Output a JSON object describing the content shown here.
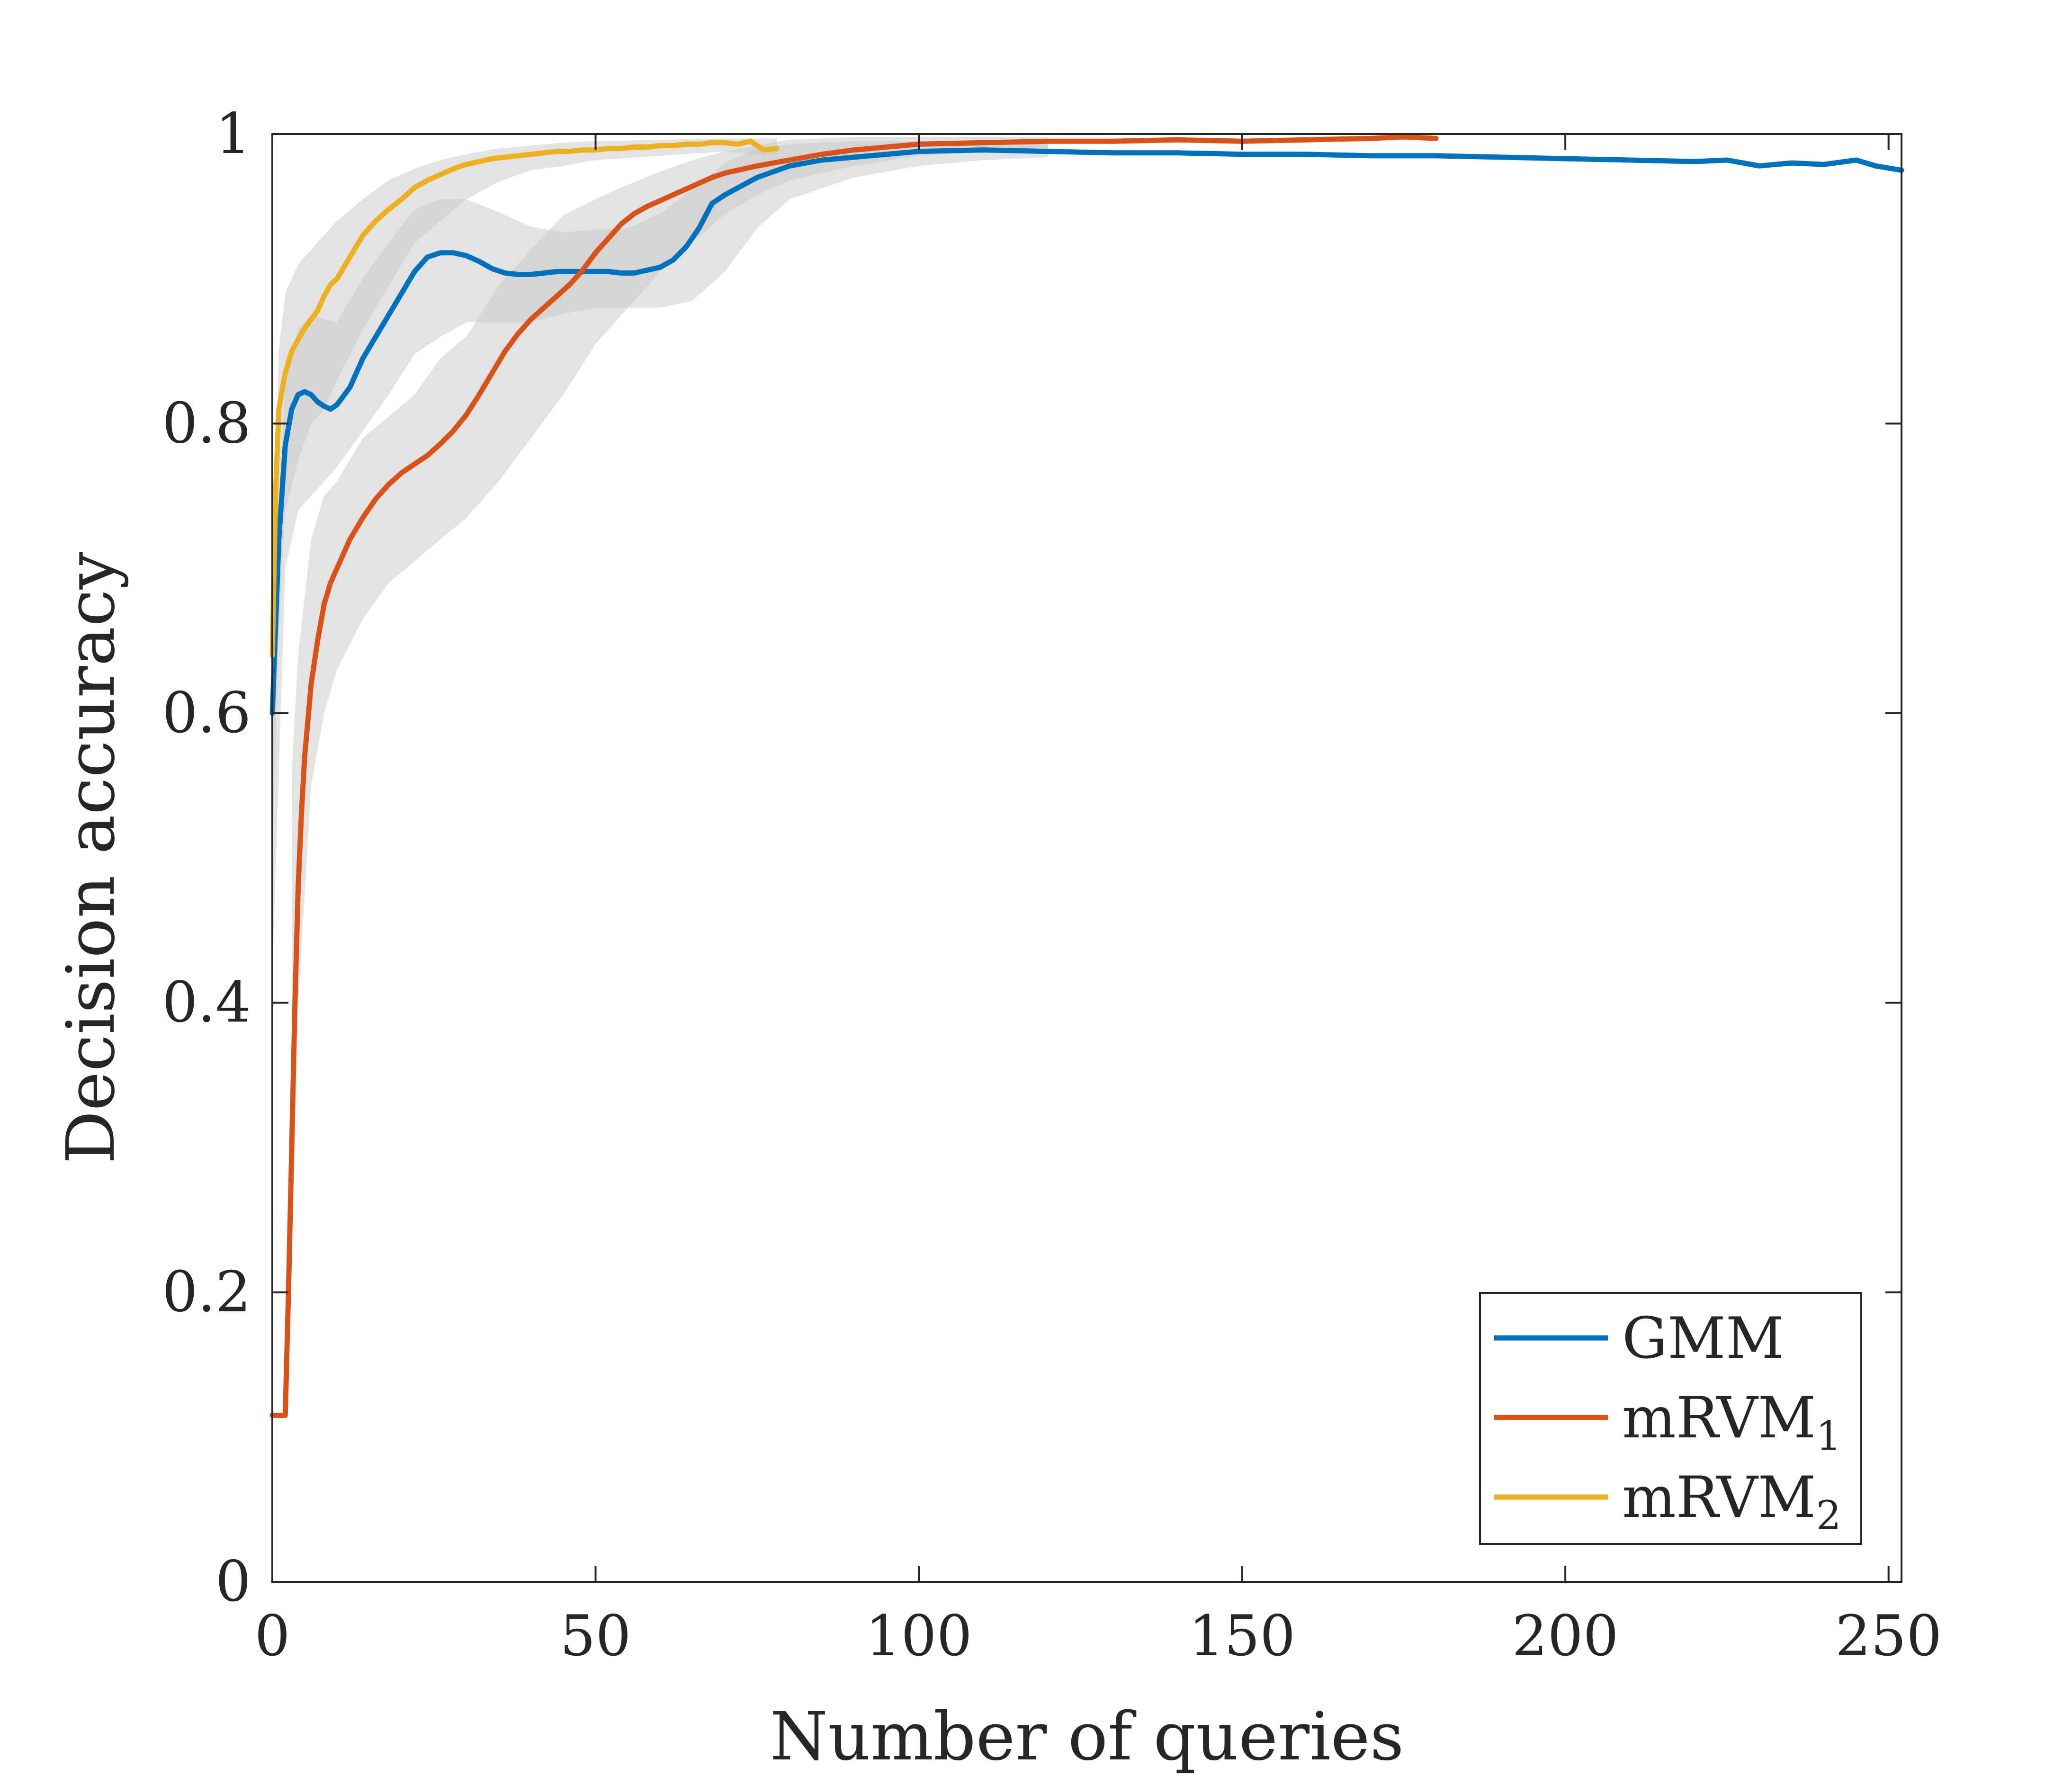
{
  "chart_data": {
    "type": "line",
    "title": "",
    "xlabel": "Number of queries",
    "ylabel": "Decision accuracy",
    "xlim": [
      0,
      252
    ],
    "ylim": [
      0,
      1
    ],
    "xticks": [
      0,
      50,
      100,
      150,
      200,
      250
    ],
    "yticks": [
      0,
      0.2,
      0.4,
      0.6,
      0.8,
      1
    ],
    "xtick_labels": [
      "0",
      "50",
      "100",
      "150",
      "200",
      "250"
    ],
    "ytick_labels": [
      "0",
      "0.2",
      "0.4",
      "0.6",
      "0.8",
      "1"
    ],
    "grid": false,
    "legend_position": "bottom-right",
    "series": [
      {
        "name": "GMM",
        "legend_base": "GMM",
        "legend_sub": "",
        "color": "#0072BD",
        "x": [
          0,
          1,
          2,
          3,
          4,
          5,
          6,
          7,
          8,
          9,
          10,
          12,
          14,
          16,
          18,
          20,
          22,
          24,
          26,
          28,
          30,
          32,
          34,
          36,
          38,
          40,
          42,
          44,
          46,
          48,
          50,
          52,
          54,
          56,
          58,
          60,
          62,
          64,
          66,
          68,
          70,
          75,
          80,
          85,
          90,
          95,
          100,
          110,
          120,
          130,
          140,
          150,
          160,
          170,
          180,
          190,
          200,
          210,
          220,
          225,
          230,
          235,
          240,
          245,
          248,
          252
        ],
        "y": [
          0.6,
          0.72,
          0.785,
          0.81,
          0.82,
          0.822,
          0.82,
          0.815,
          0.812,
          0.81,
          0.813,
          0.825,
          0.845,
          0.86,
          0.875,
          0.89,
          0.905,
          0.915,
          0.918,
          0.918,
          0.916,
          0.912,
          0.907,
          0.904,
          0.903,
          0.903,
          0.904,
          0.905,
          0.905,
          0.905,
          0.905,
          0.905,
          0.904,
          0.904,
          0.906,
          0.908,
          0.913,
          0.922,
          0.935,
          0.952,
          0.958,
          0.97,
          0.978,
          0.982,
          0.984,
          0.986,
          0.988,
          0.989,
          0.988,
          0.987,
          0.987,
          0.986,
          0.986,
          0.985,
          0.985,
          0.984,
          0.983,
          0.982,
          0.981,
          0.982,
          0.978,
          0.98,
          0.979,
          0.982,
          0.978,
          0.975
        ]
      },
      {
        "name": "mRVM1",
        "legend_base": "mRVM",
        "legend_sub": "1",
        "color": "#D95319",
        "x": [
          0,
          1,
          2,
          2.5,
          3,
          3.5,
          4,
          4.5,
          5,
          6,
          7,
          8,
          9,
          10,
          12,
          14,
          16,
          18,
          20,
          22,
          24,
          26,
          28,
          30,
          32,
          34,
          36,
          38,
          40,
          42,
          44,
          46,
          48,
          50,
          52,
          54,
          56,
          58,
          60,
          62,
          64,
          66,
          68,
          70,
          75,
          80,
          85,
          90,
          95,
          100,
          110,
          120,
          130,
          140,
          150,
          160,
          170,
          175,
          180
        ],
        "y": [
          0.115,
          0.115,
          0.115,
          0.2,
          0.3,
          0.4,
          0.48,
          0.53,
          0.57,
          0.62,
          0.65,
          0.675,
          0.69,
          0.7,
          0.72,
          0.735,
          0.748,
          0.758,
          0.766,
          0.772,
          0.778,
          0.786,
          0.795,
          0.806,
          0.82,
          0.835,
          0.85,
          0.862,
          0.872,
          0.88,
          0.888,
          0.896,
          0.906,
          0.918,
          0.928,
          0.938,
          0.945,
          0.95,
          0.954,
          0.958,
          0.962,
          0.966,
          0.97,
          0.973,
          0.978,
          0.982,
          0.986,
          0.989,
          0.991,
          0.993,
          0.994,
          0.995,
          0.995,
          0.996,
          0.995,
          0.996,
          0.997,
          0.998,
          0.997
        ]
      },
      {
        "name": "mRVM2",
        "legend_base": "mRVM",
        "legend_sub": "2",
        "color": "#EDB120",
        "x": [
          0,
          0.5,
          1,
          2,
          3,
          4,
          5,
          6,
          7,
          8,
          9,
          10,
          12,
          14,
          16,
          18,
          20,
          22,
          24,
          26,
          28,
          30,
          32,
          34,
          36,
          38,
          40,
          42,
          44,
          46,
          48,
          50,
          52,
          54,
          56,
          58,
          60,
          62,
          64,
          66,
          68,
          70,
          72,
          74,
          76,
          78
        ],
        "y": [
          0.64,
          0.75,
          0.81,
          0.835,
          0.85,
          0.858,
          0.866,
          0.872,
          0.878,
          0.888,
          0.896,
          0.9,
          0.915,
          0.93,
          0.94,
          0.948,
          0.955,
          0.963,
          0.968,
          0.972,
          0.976,
          0.979,
          0.981,
          0.983,
          0.984,
          0.985,
          0.986,
          0.987,
          0.988,
          0.988,
          0.989,
          0.989,
          0.99,
          0.99,
          0.991,
          0.991,
          0.992,
          0.992,
          0.993,
          0.993,
          0.994,
          0.994,
          0.993,
          0.995,
          0.989,
          0.99
        ]
      }
    ],
    "bands": [
      {
        "name": "GMM-band",
        "x": [
          0,
          2,
          4,
          6,
          8,
          10,
          14,
          18,
          22,
          26,
          30,
          35,
          40,
          45,
          50,
          55,
          60,
          65,
          70,
          75,
          80,
          90,
          100,
          110,
          120
        ],
        "lower": [
          0.42,
          0.7,
          0.74,
          0.75,
          0.76,
          0.77,
          0.795,
          0.82,
          0.848,
          0.86,
          0.87,
          0.87,
          0.87,
          0.876,
          0.88,
          0.88,
          0.88,
          0.885,
          0.905,
          0.935,
          0.955,
          0.97,
          0.978,
          0.982,
          0.984
        ],
        "upper": [
          0.64,
          0.83,
          0.865,
          0.875,
          0.872,
          0.87,
          0.9,
          0.925,
          0.948,
          0.955,
          0.955,
          0.946,
          0.936,
          0.932,
          0.934,
          0.935,
          0.945,
          0.962,
          0.98,
          0.99,
          0.993,
          0.995,
          0.995,
          0.995,
          0.993
        ]
      },
      {
        "name": "mRVM1-band",
        "x": [
          3,
          4,
          6,
          8,
          10,
          14,
          18,
          22,
          26,
          30,
          35,
          40,
          45,
          50,
          55,
          60,
          65,
          70,
          75,
          80,
          90,
          100,
          110,
          120
        ],
        "lower": [
          0.3,
          0.4,
          0.55,
          0.6,
          0.63,
          0.665,
          0.69,
          0.705,
          0.72,
          0.735,
          0.76,
          0.79,
          0.82,
          0.855,
          0.88,
          0.905,
          0.925,
          0.945,
          0.958,
          0.968,
          0.978,
          0.985,
          0.988,
          0.99
        ],
        "upper": [
          0.56,
          0.64,
          0.72,
          0.75,
          0.76,
          0.79,
          0.805,
          0.82,
          0.845,
          0.86,
          0.895,
          0.92,
          0.944,
          0.955,
          0.965,
          0.974,
          0.982,
          0.988,
          0.992,
          0.996,
          0.998,
          0.998,
          0.998,
          0.998
        ]
      },
      {
        "name": "mRVM2-band",
        "x": [
          0,
          1,
          2,
          4,
          6,
          8,
          10,
          14,
          18,
          22,
          26,
          30,
          35,
          40,
          45,
          50,
          60,
          70,
          78
        ],
        "lower": [
          0.5,
          0.66,
          0.74,
          0.775,
          0.8,
          0.81,
          0.83,
          0.865,
          0.895,
          0.925,
          0.94,
          0.955,
          0.967,
          0.975,
          0.978,
          0.982,
          0.985,
          0.988,
          0.985
        ],
        "upper": [
          0.67,
          0.85,
          0.89,
          0.91,
          0.92,
          0.93,
          0.94,
          0.955,
          0.968,
          0.976,
          0.982,
          0.986,
          0.99,
          0.992,
          0.994,
          0.995,
          0.996,
          0.997,
          0.997
        ]
      }
    ]
  }
}
